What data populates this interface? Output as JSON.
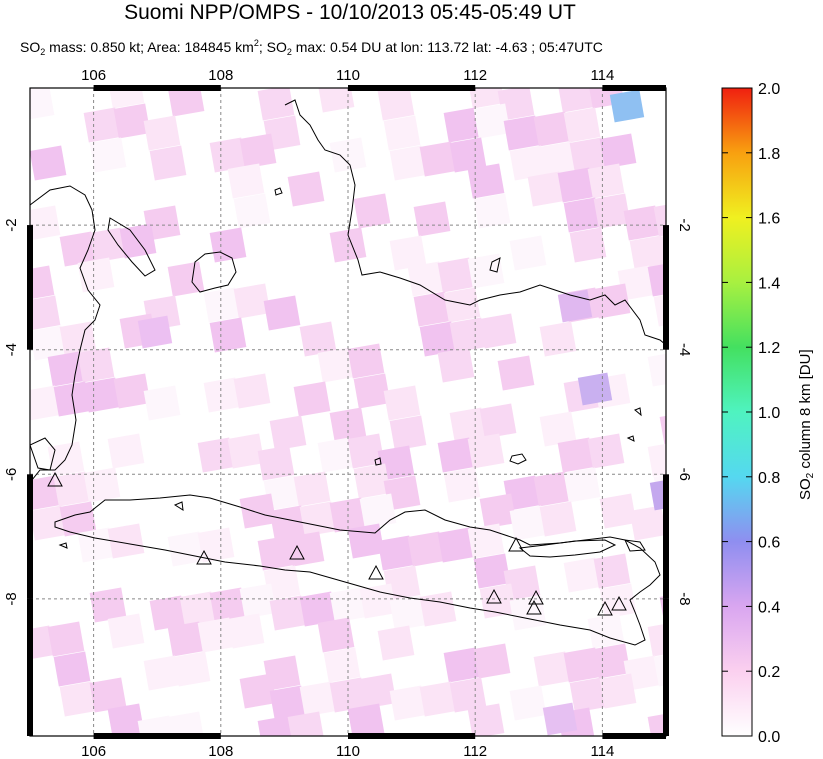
{
  "title": "Suomi NPP/OMPS - 10/10/2013 05:45-05:49 UT",
  "subtitle": {
    "part1": "SO",
    "sub1": "2",
    "part2": " mass: 0.850 kt; Area: 184845 km",
    "sup": "2",
    "part3": "; SO",
    "sub2": "2",
    "part4": " max: 0.54 DU at lon: 113.72 lat: -4.63 ; 05:47UTC"
  },
  "map": {
    "lon_range": [
      105,
      115
    ],
    "lat_range": [
      -10.2,
      0.2
    ],
    "lon_ticks": [
      "106",
      "108",
      "110",
      "112",
      "114"
    ],
    "lat_ticks": [
      "-2",
      "-4",
      "-6",
      "-8"
    ],
    "grid": true,
    "volcano_count": 10
  },
  "colorbar": {
    "label_main": "SO",
    "label_sub": "2",
    "label_rest": " column 8 km [DU]",
    "ticks": [
      "0.0",
      "0.2",
      "0.4",
      "0.6",
      "0.8",
      "1.0",
      "1.2",
      "1.4",
      "1.6",
      "1.8",
      "2.0"
    ],
    "range": [
      0,
      2
    ],
    "colors": [
      "#ffffff",
      "#fbd0ef",
      "#d9a6f0",
      "#8f8ef0",
      "#55d8f0",
      "#4ff3c0",
      "#44e060",
      "#a8f040",
      "#f0f020",
      "#f8a010",
      "#f02010"
    ]
  }
}
